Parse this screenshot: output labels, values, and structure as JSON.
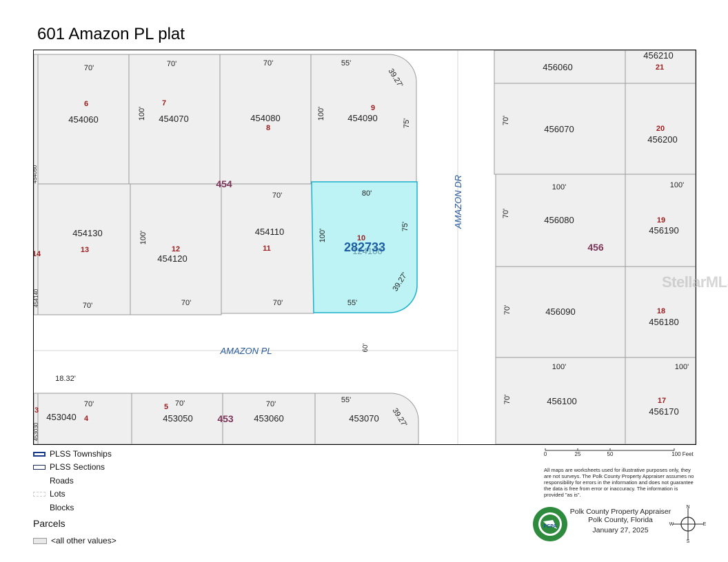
{
  "title": "601 Amazon PL plat",
  "map": {
    "streets": [
      "AMAZON DR",
      "AMAZON PL"
    ],
    "street_width_label": "60'",
    "blocks": [
      "454",
      "456",
      "453"
    ],
    "highlight_parcel": "282733",
    "lot_overlay_under_highlight": "124100",
    "offset_label": "18.32'",
    "side_parcel_labels": [
      "454050",
      "454140",
      "453030"
    ],
    "lot_numbers_edge": [
      "14",
      "3"
    ],
    "top_row": [
      {
        "parcel": "454060",
        "lot": "6",
        "dims": [
          "70'"
        ]
      },
      {
        "parcel": "454070",
        "lot": "7",
        "dims": [
          "70'",
          "100'"
        ]
      },
      {
        "parcel": "454080",
        "lot": "8",
        "dims": [
          "70'"
        ]
      },
      {
        "parcel": "454090",
        "lot": "9",
        "dims": [
          "55'",
          "39.27'",
          "100'",
          "75'"
        ]
      }
    ],
    "mid_row": [
      {
        "parcel": "454130",
        "lot": "13",
        "dims": [
          "70'"
        ]
      },
      {
        "parcel": "454120",
        "lot": "12",
        "dims": [
          "100'",
          "70'"
        ]
      },
      {
        "parcel": "454110",
        "lot": "11",
        "dims": [
          "70'",
          "70'"
        ]
      },
      {
        "parcel": "124100",
        "lot": "10",
        "dims": [
          "80'",
          "75'",
          "100'",
          "39.27'",
          "55'"
        ]
      }
    ],
    "bottom_row": [
      {
        "parcel": "453040",
        "lot": "4",
        "dims": [
          "70'"
        ]
      },
      {
        "parcel": "453050",
        "lot": "5",
        "dims": [
          "70'"
        ]
      },
      {
        "parcel": "453060",
        "lot": "",
        "dims": [
          "70'"
        ]
      },
      {
        "parcel": "453070",
        "lot": "",
        "dims": [
          "55'",
          "39.27'"
        ]
      }
    ],
    "east_left": [
      {
        "parcel": "456060",
        "lot": ""
      },
      {
        "parcel": "456070",
        "lot": "",
        "dims": [
          "70'"
        ]
      },
      {
        "parcel": "456080",
        "lot": "",
        "dims": [
          "100'",
          "70'"
        ]
      },
      {
        "parcel": "456090",
        "lot": "",
        "dims": [
          "70'"
        ]
      },
      {
        "parcel": "456100",
        "lot": "",
        "dims": [
          "100'",
          "70'"
        ]
      }
    ],
    "east_right": [
      {
        "parcel": "456210",
        "lot": "21"
      },
      {
        "parcel": "456200",
        "lot": "20"
      },
      {
        "parcel": "456190",
        "lot": "19",
        "dims": [
          "100'"
        ]
      },
      {
        "parcel": "456180",
        "lot": "18"
      },
      {
        "parcel": "456170",
        "lot": "17",
        "dims": [
          "100'"
        ]
      }
    ]
  },
  "legend": {
    "items": [
      "PLSS Townships",
      "PLSS Sections",
      "Roads",
      "Lots",
      "Blocks"
    ],
    "parcels_title": "Parcels",
    "parcels_item": "<all other values>"
  },
  "scale": {
    "ticks": [
      "0",
      "25",
      "50",
      "100 Feet"
    ]
  },
  "disclaimer": "All maps are worksheets used for illustrative purposes only, they are not surveys. The Polk County Property Appraiser assumes no responsibility for errors in the information and does not guarantee the data is free from error or inaccuracy. The information is provided \"as is\".",
  "appraiser": {
    "line1": "Polk County Property Appraiser",
    "line2": "Polk County, Florida",
    "date": "January 27, 2025",
    "seal_top": "PROPERTY",
    "seal_bottom": "APPRAISER"
  },
  "compass": {
    "n": "N",
    "s": "S",
    "e": "E",
    "w": "W"
  },
  "watermark": "StellarMLS",
  "colors": {
    "lot_number": "#9b1c1c",
    "block_label": "#7a3558",
    "street": "#2a5a9a",
    "highlight_fill": "#bdf3f5",
    "highlight_stroke": "#1bb0c9",
    "parcel_fill": "#efefef"
  }
}
